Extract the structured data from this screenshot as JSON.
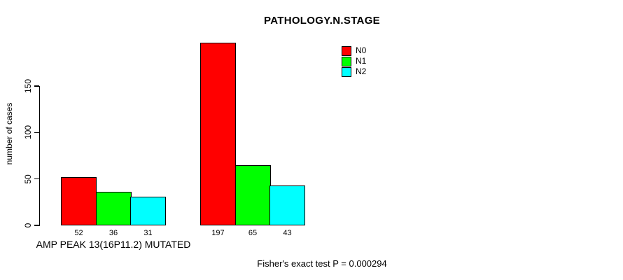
{
  "chart_data": {
    "type": "bar",
    "title": "PATHOLOGY.N.STAGE",
    "ylabel": "number of cases",
    "xlabel": "",
    "ylim": [
      0,
      150
    ],
    "yticks": [
      0,
      50,
      100,
      150
    ],
    "grid": false,
    "legend_position": "top-right",
    "categories": [
      "AMP PEAK 13(16P11.2) MUTATED",
      ""
    ],
    "series": [
      {
        "name": "N0",
        "color": "#ff0000",
        "values": [
          52,
          197
        ]
      },
      {
        "name": "N1",
        "color": "#00ff00",
        "values": [
          36,
          65
        ]
      },
      {
        "name": "N2",
        "color": "#00ffff",
        "values": [
          31,
          43
        ]
      }
    ],
    "bar_value_labels_shown": true,
    "annotation": "Fisher's exact test P = 0.000294"
  },
  "colors": {
    "background": "#ffffff",
    "axis": "#000000",
    "text": "#000000"
  }
}
